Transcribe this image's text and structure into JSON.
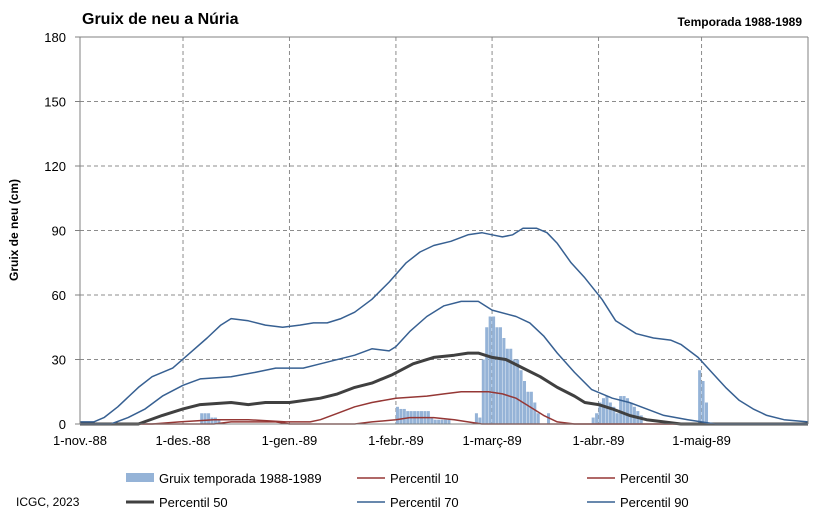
{
  "chart_data": {
    "type": "bar+line",
    "title": "Gruix de neu a Núria",
    "subtitle": "Temporada 1988-1989",
    "ylabel": "Gruix de neu (cm)",
    "xlabel": "",
    "ylim": [
      0,
      180
    ],
    "yticks": [
      0,
      30,
      60,
      90,
      120,
      150,
      180
    ],
    "x_start": "1988-11-01",
    "x_end": "1989-06-01",
    "xticks": [
      {
        "date": "1988-11-01",
        "label": "1-nov.-88"
      },
      {
        "date": "1988-12-01",
        "label": "1-des.-88"
      },
      {
        "date": "1989-01-01",
        "label": "1-gen.-89"
      },
      {
        "date": "1989-02-01",
        "label": "1-febr.-89"
      },
      {
        "date": "1989-03-01",
        "label": "1-març-89"
      },
      {
        "date": "1989-04-01",
        "label": "1-abr.-89"
      },
      {
        "date": "1989-05-01",
        "label": "1-maig-89"
      }
    ],
    "grid": true,
    "legend_position": "bottom",
    "bars": {
      "name": "Gruix temporada 1988-1989",
      "color": "#95b3d7",
      "points": [
        [
          "1988-12-06",
          5
        ],
        [
          "1988-12-07",
          5
        ],
        [
          "1988-12-08",
          5
        ],
        [
          "1988-12-09",
          3
        ],
        [
          "1988-12-10",
          3
        ],
        [
          "1988-12-11",
          2
        ],
        [
          "1989-02-01",
          8
        ],
        [
          "1989-02-02",
          7
        ],
        [
          "1989-02-03",
          7
        ],
        [
          "1989-02-04",
          6
        ],
        [
          "1989-02-05",
          6
        ],
        [
          "1989-02-06",
          6
        ],
        [
          "1989-02-07",
          6
        ],
        [
          "1989-02-08",
          6
        ],
        [
          "1989-02-09",
          6
        ],
        [
          "1989-02-10",
          6
        ],
        [
          "1989-02-11",
          3
        ],
        [
          "1989-02-12",
          2
        ],
        [
          "1989-02-13",
          2
        ],
        [
          "1989-02-14",
          2
        ],
        [
          "1989-02-15",
          2
        ],
        [
          "1989-02-16",
          2
        ],
        [
          "1989-02-24",
          5
        ],
        [
          "1989-02-25",
          3
        ],
        [
          "1989-02-26",
          30
        ],
        [
          "1989-02-27",
          45
        ],
        [
          "1989-02-28",
          50
        ],
        [
          "1989-03-01",
          50
        ],
        [
          "1989-03-02",
          45
        ],
        [
          "1989-03-03",
          45
        ],
        [
          "1989-03-04",
          40
        ],
        [
          "1989-03-05",
          35
        ],
        [
          "1989-03-06",
          35
        ],
        [
          "1989-03-07",
          30
        ],
        [
          "1989-03-08",
          30
        ],
        [
          "1989-03-09",
          25
        ],
        [
          "1989-03-10",
          20
        ],
        [
          "1989-03-11",
          15
        ],
        [
          "1989-03-12",
          15
        ],
        [
          "1989-03-13",
          10
        ],
        [
          "1989-03-14",
          5
        ],
        [
          "1989-03-17",
          5
        ],
        [
          "1989-03-30",
          3
        ],
        [
          "1989-03-31",
          5
        ],
        [
          "1989-04-01",
          10
        ],
        [
          "1989-04-02",
          12
        ],
        [
          "1989-04-03",
          13
        ],
        [
          "1989-04-04",
          10
        ],
        [
          "1989-04-05",
          8
        ],
        [
          "1989-04-06",
          5
        ],
        [
          "1989-04-07",
          13
        ],
        [
          "1989-04-08",
          13
        ],
        [
          "1989-04-09",
          12
        ],
        [
          "1989-04-10",
          10
        ],
        [
          "1989-04-11",
          8
        ],
        [
          "1989-04-12",
          6
        ],
        [
          "1989-04-13",
          4
        ],
        [
          "1989-04-30",
          25
        ],
        [
          "1989-05-01",
          20
        ],
        [
          "1989-05-02",
          10
        ]
      ]
    },
    "series": [
      {
        "name": "Percentil 10",
        "color": "#953735",
        "width": 1.5,
        "points": [
          [
            "1988-11-01",
            0
          ],
          [
            "1988-12-10",
            0
          ],
          [
            "1988-12-15",
            1
          ],
          [
            "1988-12-28",
            1
          ],
          [
            "1989-01-01",
            0
          ],
          [
            "1989-01-20",
            0
          ],
          [
            "1989-01-25",
            1
          ],
          [
            "1989-02-01",
            2
          ],
          [
            "1989-02-05",
            3
          ],
          [
            "1989-02-12",
            3
          ],
          [
            "1989-02-18",
            2
          ],
          [
            "1989-02-22",
            1
          ],
          [
            "1989-02-26",
            0
          ],
          [
            "1989-06-01",
            0
          ]
        ]
      },
      {
        "name": "Percentil 30",
        "color": "#953735",
        "width": 1.5,
        "points": [
          [
            "1988-11-01",
            0
          ],
          [
            "1988-11-22",
            0
          ],
          [
            "1988-11-30",
            1
          ],
          [
            "1988-12-10",
            2
          ],
          [
            "1988-12-15",
            2
          ],
          [
            "1988-12-20",
            2
          ],
          [
            "1988-12-31",
            1
          ],
          [
            "1989-01-07",
            1
          ],
          [
            "1989-01-10",
            2
          ],
          [
            "1989-01-15",
            5
          ],
          [
            "1989-01-20",
            8
          ],
          [
            "1989-01-25",
            10
          ],
          [
            "1989-02-01",
            12
          ],
          [
            "1989-02-10",
            13
          ],
          [
            "1989-02-15",
            14
          ],
          [
            "1989-02-20",
            15
          ],
          [
            "1989-02-23",
            15
          ],
          [
            "1989-02-28",
            15
          ],
          [
            "1989-03-04",
            14
          ],
          [
            "1989-03-08",
            12
          ],
          [
            "1989-03-12",
            8
          ],
          [
            "1989-03-16",
            4
          ],
          [
            "1989-03-20",
            1
          ],
          [
            "1989-03-25",
            0
          ],
          [
            "1989-06-01",
            0
          ]
        ]
      },
      {
        "name": "Percentil 50",
        "color": "#404040",
        "width": 3,
        "points": [
          [
            "1988-11-01",
            0
          ],
          [
            "1988-11-18",
            0
          ],
          [
            "1988-11-25",
            4
          ],
          [
            "1988-12-01",
            7
          ],
          [
            "1988-12-06",
            9
          ],
          [
            "1988-12-15",
            10
          ],
          [
            "1988-12-20",
            9
          ],
          [
            "1988-12-25",
            10
          ],
          [
            "1989-01-01",
            10
          ],
          [
            "1989-01-10",
            12
          ],
          [
            "1989-01-15",
            14
          ],
          [
            "1989-01-20",
            17
          ],
          [
            "1989-01-25",
            19
          ],
          [
            "1989-01-31",
            23
          ],
          [
            "1989-02-06",
            28
          ],
          [
            "1989-02-12",
            31
          ],
          [
            "1989-02-18",
            32
          ],
          [
            "1989-02-22",
            33
          ],
          [
            "1989-02-25",
            33
          ],
          [
            "1989-03-01",
            31
          ],
          [
            "1989-03-05",
            30
          ],
          [
            "1989-03-10",
            26
          ],
          [
            "1989-03-15",
            22
          ],
          [
            "1989-03-20",
            17
          ],
          [
            "1989-03-25",
            13
          ],
          [
            "1989-03-28",
            10
          ],
          [
            "1989-04-01",
            9
          ],
          [
            "1989-04-05",
            7
          ],
          [
            "1989-04-10",
            4
          ],
          [
            "1989-04-15",
            2
          ],
          [
            "1989-04-20",
            1
          ],
          [
            "1989-04-25",
            0
          ],
          [
            "1989-06-01",
            0
          ]
        ]
      },
      {
        "name": "Percentil 70",
        "color": "#376092",
        "width": 1.5,
        "points": [
          [
            "1988-11-01",
            0
          ],
          [
            "1988-11-10",
            0
          ],
          [
            "1988-11-15",
            3
          ],
          [
            "1988-11-20",
            7
          ],
          [
            "1988-11-25",
            13
          ],
          [
            "1988-12-01",
            18
          ],
          [
            "1988-12-06",
            21
          ],
          [
            "1988-12-15",
            22
          ],
          [
            "1988-12-22",
            24
          ],
          [
            "1988-12-28",
            26
          ],
          [
            "1989-01-05",
            26
          ],
          [
            "1989-01-10",
            28
          ],
          [
            "1989-01-20",
            32
          ],
          [
            "1989-01-25",
            35
          ],
          [
            "1989-01-30",
            34
          ],
          [
            "1989-02-01",
            36
          ],
          [
            "1989-02-05",
            43
          ],
          [
            "1989-02-10",
            50
          ],
          [
            "1989-02-15",
            55
          ],
          [
            "1989-02-20",
            57
          ],
          [
            "1989-02-25",
            57
          ],
          [
            "1989-03-01",
            53
          ],
          [
            "1989-03-08",
            50
          ],
          [
            "1989-03-12",
            47
          ],
          [
            "1989-03-16",
            41
          ],
          [
            "1989-03-20",
            33
          ],
          [
            "1989-03-25",
            24
          ],
          [
            "1989-03-30",
            16
          ],
          [
            "1989-04-05",
            12
          ],
          [
            "1989-04-10",
            10
          ],
          [
            "1989-04-15",
            7
          ],
          [
            "1989-04-20",
            4
          ],
          [
            "1989-04-27",
            2
          ],
          [
            "1989-05-01",
            1
          ],
          [
            "1989-05-05",
            0
          ],
          [
            "1989-06-01",
            0
          ]
        ]
      },
      {
        "name": "Percentil 90",
        "color": "#376092",
        "width": 1.5,
        "points": [
          [
            "1988-11-01",
            1
          ],
          [
            "1988-11-05",
            1
          ],
          [
            "1988-11-08",
            3
          ],
          [
            "1988-11-12",
            8
          ],
          [
            "1988-11-18",
            17
          ],
          [
            "1988-11-22",
            22
          ],
          [
            "1988-11-28",
            26
          ],
          [
            "1988-12-03",
            33
          ],
          [
            "1988-12-08",
            40
          ],
          [
            "1988-12-12",
            46
          ],
          [
            "1988-12-15",
            49
          ],
          [
            "1988-12-20",
            48
          ],
          [
            "1988-12-25",
            46
          ],
          [
            "1988-12-30",
            45
          ],
          [
            "1989-01-04",
            46
          ],
          [
            "1989-01-08",
            47
          ],
          [
            "1989-01-12",
            47
          ],
          [
            "1989-01-16",
            49
          ],
          [
            "1989-01-20",
            52
          ],
          [
            "1989-01-25",
            58
          ],
          [
            "1989-01-30",
            66
          ],
          [
            "1989-02-04",
            75
          ],
          [
            "1989-02-08",
            80
          ],
          [
            "1989-02-12",
            83
          ],
          [
            "1989-02-17",
            85
          ],
          [
            "1989-02-22",
            88
          ],
          [
            "1989-02-26",
            89
          ],
          [
            "1989-03-01",
            88
          ],
          [
            "1989-03-04",
            87
          ],
          [
            "1989-03-07",
            88
          ],
          [
            "1989-03-10",
            91
          ],
          [
            "1989-03-14",
            91
          ],
          [
            "1989-03-17",
            89
          ],
          [
            "1989-03-20",
            84
          ],
          [
            "1989-03-24",
            75
          ],
          [
            "1989-03-28",
            68
          ],
          [
            "1989-04-02",
            58
          ],
          [
            "1989-04-06",
            48
          ],
          [
            "1989-04-12",
            42
          ],
          [
            "1989-04-17",
            40
          ],
          [
            "1989-04-22",
            39
          ],
          [
            "1989-04-25",
            37
          ],
          [
            "1989-04-30",
            31
          ],
          [
            "1989-05-04",
            24
          ],
          [
            "1989-05-08",
            17
          ],
          [
            "1989-05-12",
            11
          ],
          [
            "1989-05-16",
            7
          ],
          [
            "1989-05-20",
            4
          ],
          [
            "1989-05-25",
            2
          ],
          [
            "1989-06-01",
            1
          ]
        ]
      }
    ]
  },
  "credit": "ICGC, 2023"
}
